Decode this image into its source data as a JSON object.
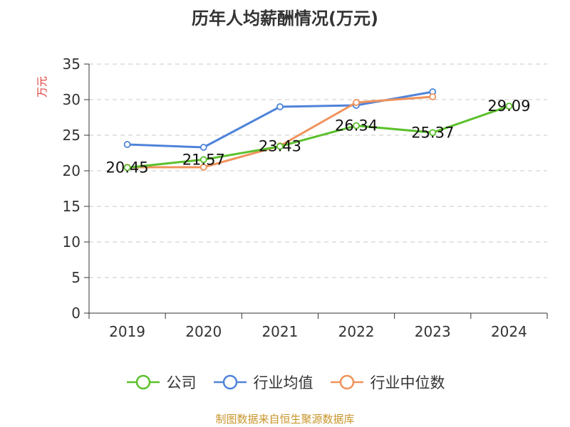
{
  "chart_data": {
    "type": "line",
    "title": "历年人均薪酬情况(万元)",
    "xlabel": "",
    "ylabel": "万元",
    "categories": [
      "2019",
      "2020",
      "2021",
      "2022",
      "2023",
      "2024"
    ],
    "ylim": [
      0,
      35
    ],
    "yticks": [
      0,
      5,
      10,
      15,
      20,
      25,
      30,
      35
    ],
    "grid": true,
    "legend_position": "bottom",
    "series": [
      {
        "name": "公司",
        "color": "#5bc02c",
        "values": [
          20.45,
          21.57,
          23.43,
          26.34,
          25.37,
          29.09
        ],
        "labels": [
          "20.45",
          "21.57",
          "23.43",
          "26.34",
          "25.37",
          "29.09"
        ]
      },
      {
        "name": "行业均值",
        "color": "#4f83d9",
        "values": [
          23.7,
          23.3,
          29.0,
          29.2,
          31.1,
          null
        ],
        "labels": null
      },
      {
        "name": "行业中位数",
        "color": "#f0925a",
        "values": [
          20.5,
          20.5,
          23.5,
          29.6,
          30.4,
          null
        ],
        "labels": null
      }
    ]
  },
  "source_text": "制图数据来自恒生聚源数据库"
}
